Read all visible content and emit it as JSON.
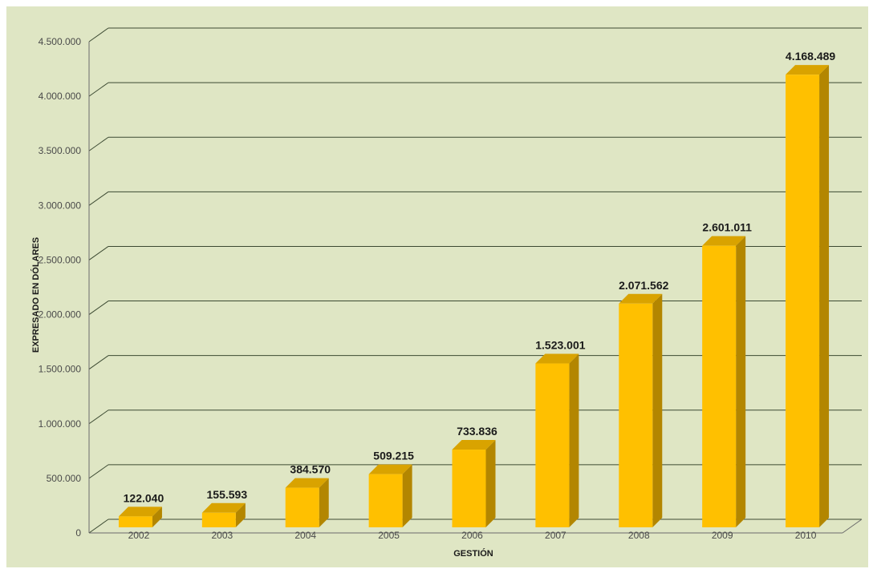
{
  "chart_data": {
    "type": "bar",
    "title": "",
    "xlabel": "GESTIÓN",
    "ylabel": "EXPRESADO EN DÓLARES",
    "categories": [
      "2002",
      "2003",
      "2004",
      "2005",
      "2006",
      "2007",
      "2008",
      "2009",
      "2010"
    ],
    "values": [
      122040,
      155593,
      384570,
      509215,
      733836,
      1523001,
      2071562,
      2601011,
      4168489
    ],
    "value_labels": [
      "122.040",
      "155.593",
      "384.570",
      "509.215",
      "733.836",
      "1.523.001",
      "2.071.562",
      "2.601.011",
      "4.168.489"
    ],
    "ylim": [
      0,
      4500000
    ],
    "yticks": [
      0,
      500000,
      1000000,
      1500000,
      2000000,
      2500000,
      3000000,
      3500000,
      4000000,
      4500000
    ],
    "ytick_labels": [
      "0",
      "500.000",
      "1.000.000",
      "1.500.000",
      "2.000.000",
      "2.500.000",
      "3.000.000",
      "3.500.000",
      "4.000.000",
      "4.500.000"
    ],
    "grid": true,
    "style": "3d",
    "colors": {
      "background": "#dfe6c4",
      "bar_front": "#ffc000",
      "bar_side": "#b38600",
      "bar_top": "#d9a300",
      "gridline": "#3c4a32",
      "axis": "#6b6b6b"
    }
  }
}
